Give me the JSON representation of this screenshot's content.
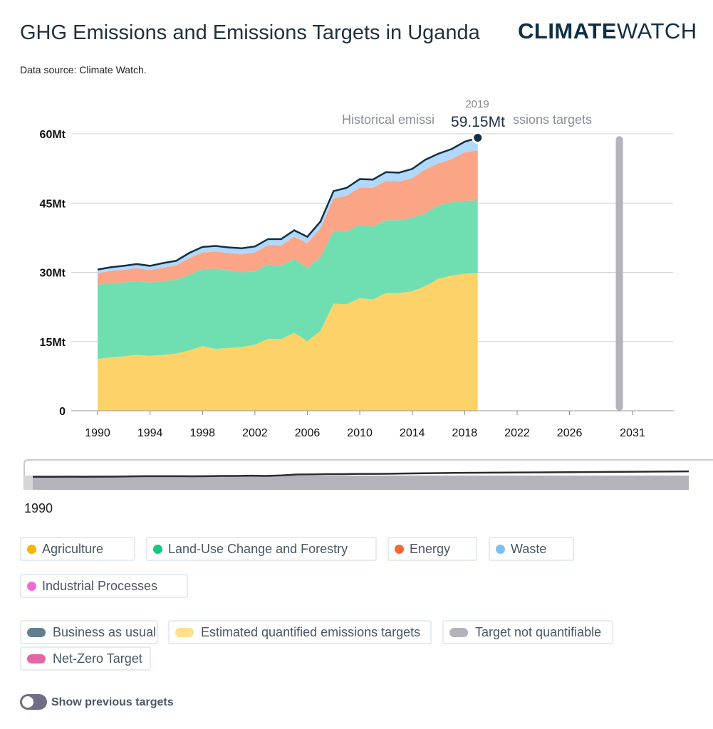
{
  "header": {
    "title": "GHG Emissions and Emissions Targets in Uganda",
    "logo_bold": "CLIMATE",
    "logo_light": "WATCH",
    "source": "Data source: Climate Watch."
  },
  "tooltip": {
    "year": "2019",
    "value": "59.15Mt",
    "left_text": "Historical emissi",
    "right_text": "ssions targets"
  },
  "chart_data": {
    "type": "area",
    "stacked": true,
    "x": [
      1990,
      1991,
      1992,
      1993,
      1994,
      1995,
      1996,
      1997,
      1998,
      1999,
      2000,
      2001,
      2002,
      2003,
      2004,
      2005,
      2006,
      2007,
      2008,
      2009,
      2010,
      2011,
      2012,
      2013,
      2014,
      2015,
      2016,
      2017,
      2018,
      2019
    ],
    "series": [
      {
        "name": "Agriculture",
        "color": "#fdd369",
        "values": [
          11.2,
          11.6,
          11.8,
          12.1,
          11.9,
          12.1,
          12.4,
          13.1,
          14.0,
          13.4,
          13.6,
          13.8,
          14.3,
          15.6,
          15.5,
          16.9,
          15.1,
          17.3,
          23.2,
          23.1,
          24.4,
          24.1,
          25.5,
          25.5,
          25.9,
          27.0,
          28.6,
          29.3,
          29.7,
          29.8
        ]
      },
      {
        "name": "Land-Use Change and Forestry",
        "color": "#6fdfb1",
        "values": [
          16.1,
          16.1,
          16.0,
          16.0,
          15.9,
          16.0,
          16.0,
          16.4,
          16.7,
          17.4,
          16.8,
          16.2,
          15.9,
          16.1,
          15.9,
          16.0,
          15.9,
          16.0,
          15.8,
          15.8,
          15.9,
          15.8,
          15.8,
          15.8,
          15.9,
          15.8,
          15.9,
          15.9,
          15.8,
          15.8
        ]
      },
      {
        "name": "Energy",
        "color": "#fca486",
        "values": [
          2.5,
          2.6,
          2.7,
          2.8,
          2.7,
          2.9,
          3.1,
          3.6,
          3.6,
          3.7,
          3.8,
          3.9,
          4.1,
          4.2,
          4.4,
          4.8,
          5.3,
          6.2,
          7.0,
          7.7,
          8.1,
          8.4,
          8.5,
          8.4,
          8.6,
          9.5,
          9.1,
          9.3,
          10.5,
          10.8
        ]
      },
      {
        "name": "Waste",
        "color": "#b1d8f9",
        "values": [
          0.7,
          0.7,
          0.8,
          0.8,
          0.8,
          0.9,
          0.9,
          1.0,
          1.1,
          1.1,
          1.1,
          1.2,
          1.2,
          1.2,
          1.3,
          1.3,
          1.3,
          1.4,
          1.5,
          1.6,
          1.7,
          1.7,
          1.8,
          1.8,
          1.9,
          2.0,
          2.0,
          2.1,
          2.2,
          2.3
        ]
      },
      {
        "name": "Industrial Processes",
        "color": "#ef6dd0",
        "values": [
          0.1,
          0.1,
          0.1,
          0.1,
          0.1,
          0.1,
          0.1,
          0.1,
          0.1,
          0.1,
          0.1,
          0.1,
          0.1,
          0.1,
          0.1,
          0.1,
          0.1,
          0.1,
          0.1,
          0.1,
          0.1,
          0.1,
          0.1,
          0.1,
          0.1,
          0.1,
          0.1,
          0.1,
          0.1,
          0.45
        ]
      }
    ],
    "total_line_color": "#122f46",
    "y_ticks": [
      "0",
      "15Mt",
      "30Mt",
      "45Mt",
      "60Mt"
    ],
    "y_tick_values": [
      0,
      15,
      30,
      45,
      60
    ],
    "ylim": [
      0,
      60
    ],
    "x_ticks": [
      "1990",
      "1994",
      "1998",
      "2002",
      "2006",
      "2010",
      "2014",
      "2018",
      "2022",
      "2026",
      "2031"
    ],
    "x_tick_values": [
      1990,
      1994,
      1998,
      2002,
      2006,
      2010,
      2014,
      2018,
      2022,
      2026,
      2030.8
    ],
    "xlim": [
      1990,
      2033.9
    ],
    "target_not_quantifiable": {
      "year": 2029.8,
      "from": 0,
      "to": 59.5,
      "color": "#b4b2bb"
    },
    "highlight": {
      "year": 2019,
      "value": 59.15
    },
    "brush_label": "1990"
  },
  "legend": {
    "sectors": [
      {
        "label": "Agriculture",
        "color": "#f6b500"
      },
      {
        "label": "Land-Use Change and Forestry",
        "color": "#17c97f"
      },
      {
        "label": "Energy",
        "color": "#f36a32"
      },
      {
        "label": "Waste",
        "color": "#7ac1f5"
      },
      {
        "label": "Industrial Processes",
        "color": "#ef6dd0"
      }
    ],
    "targets": [
      {
        "label": "Business as usual",
        "color": "#627f91"
      },
      {
        "label": "Estimated quantified emissions targets",
        "color": "#fde08b"
      },
      {
        "label": "Target not quantifiable",
        "color": "#b4b2bb"
      },
      {
        "label": "Net-Zero Target",
        "color": "#e466a7"
      }
    ]
  },
  "toggle": {
    "label": "Show previous targets"
  }
}
